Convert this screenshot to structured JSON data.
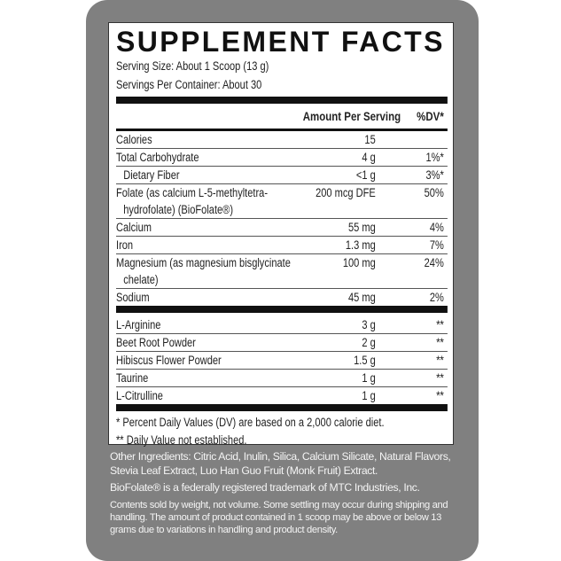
{
  "title": "SUPPLEMENT FACTS",
  "serving_size": "Serving Size: About 1 Scoop (13 g)",
  "servings_per_container": "Servings Per Container: About 30",
  "header": {
    "amount": "Amount Per Serving",
    "dv": "%DV*"
  },
  "nutrients": [
    {
      "name": "Calories",
      "amount": "15",
      "dv": ""
    },
    {
      "name": "Total Carbohydrate",
      "amount": "4 g",
      "dv": "1%*"
    },
    {
      "name": "Dietary Fiber",
      "amount": "<1 g",
      "dv": "3%*"
    },
    {
      "name": "Folate (as calcium L-5-methyltetra-",
      "name2": "hydrofolate) (BioFolate®)",
      "amount": "200 mcg DFE",
      "dv": "50%"
    },
    {
      "name": "Calcium",
      "amount": "55 mg",
      "dv": "4%"
    },
    {
      "name": "Iron",
      "amount": "1.3 mg",
      "dv": "7%"
    },
    {
      "name": "Magnesium (as magnesium bisglycinate",
      "name2": "chelate)",
      "amount": "100 mg",
      "dv": "24%"
    },
    {
      "name": "Sodium",
      "amount": "45 mg",
      "dv": "2%"
    }
  ],
  "other_actives": [
    {
      "name": "L-Arginine",
      "amount": "3 g",
      "dv": "**"
    },
    {
      "name": "Beet Root Powder",
      "amount": "2 g",
      "dv": "**"
    },
    {
      "name": "Hibiscus Flower Powder",
      "amount": "1.5 g",
      "dv": "**"
    },
    {
      "name": "Taurine",
      "amount": "1 g",
      "dv": "**"
    },
    {
      "name": "L-Citrulline",
      "amount": "1 g",
      "dv": "**"
    }
  ],
  "footnotes": [
    "* Percent Daily Values (DV) are based on a 2,000 calorie diet.",
    "** Daily Value not established."
  ],
  "other_ingredients": "Other Ingredients: Citric Acid, Inulin, Silica, Calcium Silicate, Natural Flavors, Stevia Leaf Extract, Luo Han Guo Fruit (Monk Fruit) Extract.",
  "trademark": "BioFolate® is a federally registered trademark of MTC Industries, Inc.",
  "contents_note": "Contents sold by weight, not volume. Some settling may occur during shipping and handling. The amount of product contained in 1 scoop may be above or below 13 grams due to variations in handling and product density.",
  "colors": {
    "panel": "#808080",
    "label": "#ffffff",
    "text": "#222222"
  }
}
